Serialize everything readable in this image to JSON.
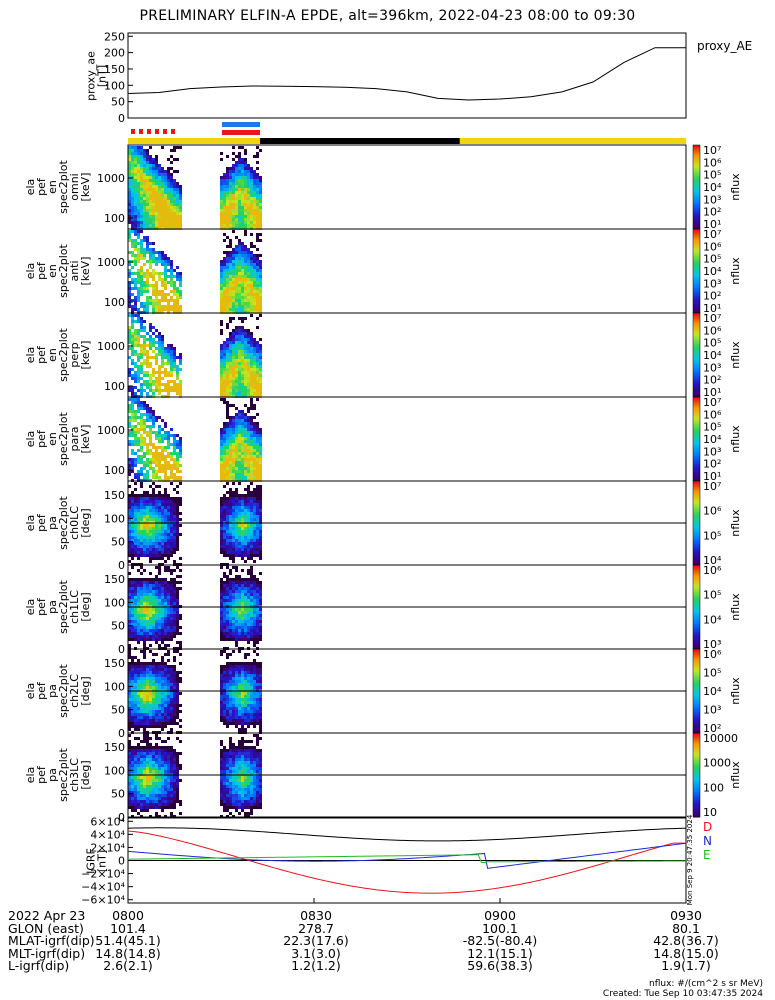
{
  "title": "PRELIMINARY ELFIN-A EPDE, alt=396km, 2022-04-23 08:00 to 09:30",
  "colors": {
    "red": "#e8141e",
    "blue": "#1e78e6",
    "yellow": "#f5d20a",
    "black": "#000000",
    "green": "#22bb22"
  },
  "panels": [
    {
      "id": "proxy_ae",
      "ylabel": [
        "proxy_ae",
        "[nT]"
      ],
      "legend": "proxy_AE"
    },
    {
      "id": "en-omni",
      "ylabel": [
        "ela",
        "pef",
        "en",
        "spec2plot",
        "omni",
        "[keV]"
      ],
      "zlabel": "nflux"
    },
    {
      "id": "en-anti",
      "ylabel": [
        "ela",
        "pef",
        "en",
        "spec2plot",
        "anti",
        "[keV]"
      ],
      "zlabel": "nflux"
    },
    {
      "id": "en-perp",
      "ylabel": [
        "ela",
        "pef",
        "en",
        "spec2plot",
        "perp",
        "[keV]"
      ],
      "zlabel": "nflux"
    },
    {
      "id": "en-para",
      "ylabel": [
        "ela",
        "pef",
        "en",
        "spec2plot",
        "para",
        "[keV]"
      ],
      "zlabel": "nflux"
    },
    {
      "id": "pa-ch0",
      "ylabel": [
        "ela",
        "pef",
        "pa",
        "spec2plot",
        "ch0LC",
        "[deg]"
      ],
      "zlabel": "nflux"
    },
    {
      "id": "pa-ch1",
      "ylabel": [
        "ela",
        "pef",
        "pa",
        "spec2plot",
        "ch1LC",
        "[deg]"
      ],
      "zlabel": "nflux"
    },
    {
      "id": "pa-ch2",
      "ylabel": [
        "ela",
        "pef",
        "pa",
        "spec2plot",
        "ch2LC",
        "[deg]"
      ],
      "zlabel": "nflux"
    },
    {
      "id": "pa-ch3",
      "ylabel": [
        "ela",
        "pef",
        "pa",
        "spec2plot",
        "ch3LC",
        "[deg]"
      ],
      "zlabel": "nflux"
    },
    {
      "id": "igrf",
      "ylabel": [
        "IGRF",
        "[nT]"
      ]
    }
  ],
  "chart_data": {
    "type": "line",
    "x_ticks": [
      "0800",
      "0830",
      "0900",
      "0930"
    ],
    "proxy_ae": {
      "y_ticks": [
        "0",
        "50",
        "100",
        "150",
        "200",
        "250"
      ],
      "ylim": [
        0,
        260
      ],
      "time_min": [
        0,
        5,
        10,
        15,
        20,
        25,
        30,
        35,
        40,
        45,
        50,
        55,
        60,
        65,
        70,
        75,
        80,
        85,
        88,
        90
      ],
      "values": [
        75,
        78,
        90,
        95,
        98,
        97,
        96,
        94,
        90,
        80,
        60,
        55,
        58,
        65,
        80,
        110,
        170,
        215,
        215,
        215
      ]
    },
    "energy_ticks": [
      "1000",
      "100"
    ],
    "pa_ticks": [
      "150",
      "100",
      "50",
      "0"
    ],
    "colorbars": [
      [
        "10⁷",
        "10⁶",
        "10⁵",
        "10⁴",
        "10³",
        "10²",
        "10¹"
      ],
      [
        "10⁷",
        "10⁶",
        "10⁵",
        "10⁴",
        "10³",
        "10²",
        "10¹"
      ],
      [
        "10⁷",
        "10⁶",
        "10⁵",
        "10⁴",
        "10³",
        "10²",
        "10¹"
      ],
      [
        "10⁷",
        "10⁶",
        "10⁵",
        "10⁴",
        "10³",
        "10²",
        "10¹"
      ],
      [
        "10⁷",
        "10⁶",
        "10⁵",
        "10⁴"
      ],
      [
        "10⁶",
        "10⁵",
        "10⁴",
        "10³"
      ],
      [
        "10⁶",
        "10⁵",
        "10⁴",
        "10³",
        "10²"
      ],
      [
        "10000",
        "1000",
        "100",
        "10"
      ]
    ],
    "igrf": {
      "y_ticks": [
        "6×10⁴",
        "4×10⁴",
        "2×10⁴",
        "0",
        "−2×10⁴",
        "−4×10⁴",
        "−6×10⁴"
      ],
      "ylim": [
        -65000,
        65000
      ],
      "series": [
        {
          "name": "D",
          "color": "#e8141e"
        },
        {
          "name": "N",
          "color": "#1e2ad0"
        },
        {
          "name": "E",
          "color": "#22bb22"
        }
      ]
    }
  },
  "footer": {
    "rows": [
      {
        "label": "2022 Apr 23",
        "vals": [
          "0800",
          "0830",
          "0900",
          "0930"
        ]
      },
      {
        "label": "GLON (east)",
        "vals": [
          "101.4",
          "278.7",
          "100.1",
          "80.1"
        ]
      },
      {
        "label": "MLAT-igrf(dip)",
        "vals": [
          "51.4(45.1)",
          "22.3(17.6)",
          "-82.5(-80.4)",
          "42.8(36.7)"
        ]
      },
      {
        "label": "MLT-igrf(dip)",
        "vals": [
          "14.8(14.8)",
          "3.1(3.0)",
          "12.1(15.1)",
          "14.8(15.0)"
        ]
      },
      {
        "label": "L-igrf(dip)",
        "vals": [
          "2.6(2.1)",
          "1.2(1.2)",
          "59.6(38.3)",
          "1.9(1.7)"
        ]
      }
    ],
    "units": "nflux: #/(cm^2 s sr MeV)",
    "created": "Created: Tue Sep 10 03:47:35 2024",
    "stamp_left": "Mon Sep 9 20:47:35 2024"
  }
}
